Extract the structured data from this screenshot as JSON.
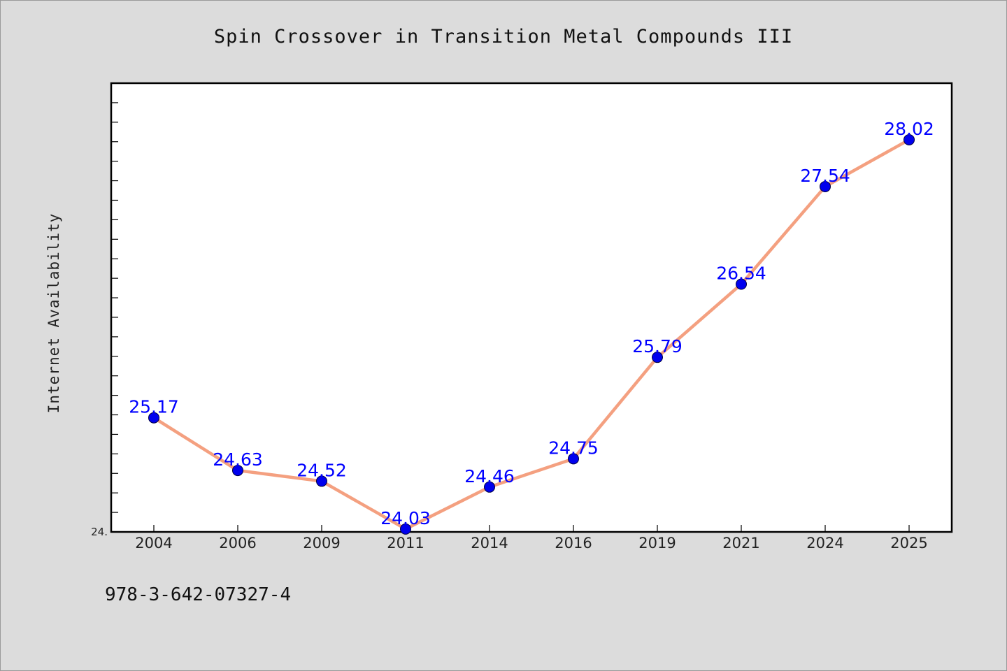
{
  "chart_data": {
    "type": "line",
    "title": "Spin Crossover in Transition Metal Compounds III",
    "xlabel": "",
    "ylabel": "Internet Availability",
    "categories": [
      "2004",
      "2006",
      "2009",
      "2011",
      "2014",
      "2016",
      "2019",
      "2021",
      "2024",
      "2025"
    ],
    "series": [
      {
        "values": [
          25.17,
          24.63,
          24.52,
          24.03,
          24.46,
          24.75,
          25.79,
          26.54,
          27.54,
          28.02
        ],
        "value_labels": [
          "25.17",
          "24.63",
          "24.52",
          "24.03",
          "24.46",
          "24.75",
          "25.79",
          "26.54",
          "27.54",
          "28.02"
        ]
      }
    ],
    "y_tick_labels": [
      {
        "value": 24.0,
        "label": "24."
      }
    ],
    "ylim": [
      24.0,
      28.6
    ],
    "grid": false,
    "legend": "none",
    "line_color": "#f4a080",
    "marker_color": "#0000ee",
    "label_color": "#0000ff"
  },
  "footer": {
    "isbn": "978-3-642-07327-4"
  }
}
